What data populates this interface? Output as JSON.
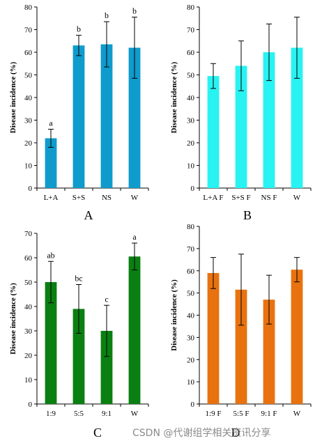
{
  "watermark": "CSDN @代谢组学相关资讯分享",
  "chart_data": [
    {
      "type": "bar",
      "panel_label": "A",
      "ylabel": "Disease incidence (%)",
      "ylim": [
        0,
        80
      ],
      "yticks": [
        0,
        10,
        20,
        30,
        40,
        50,
        60,
        70,
        80
      ],
      "color": "#0f9bcc",
      "categories": [
        "L+A",
        "S+S",
        "NS",
        "W"
      ],
      "values": [
        22,
        63,
        63.5,
        62
      ],
      "errors": [
        4,
        4.5,
        10,
        13.5
      ],
      "significance": [
        "a",
        "b",
        "b",
        "b"
      ]
    },
    {
      "type": "bar",
      "panel_label": "B",
      "ylabel": "Disease incidence (%)",
      "ylim": [
        0,
        80
      ],
      "yticks": [
        0,
        10,
        20,
        30,
        40,
        50,
        60,
        70,
        80
      ],
      "color": "#29f2f2",
      "categories": [
        "L+A F",
        "S+S F",
        "NS F",
        "W"
      ],
      "values": [
        49.5,
        54,
        60,
        62
      ],
      "errors": [
        5.5,
        11,
        12.5,
        13.5
      ],
      "significance": [
        "",
        "",
        "",
        ""
      ]
    },
    {
      "type": "bar",
      "panel_label": "C",
      "ylabel": "Disease incidence (%)",
      "ylim": [
        0,
        70
      ],
      "yticks": [
        0,
        10,
        20,
        30,
        40,
        50,
        60,
        70
      ],
      "color": "#0a7f12",
      "categories": [
        "1:9",
        "5:5",
        "9:1",
        "W"
      ],
      "values": [
        50,
        39,
        30,
        60.5
      ],
      "errors": [
        8.5,
        10,
        10.5,
        5.5
      ],
      "significance": [
        "ab",
        "bc",
        "c",
        "a"
      ]
    },
    {
      "type": "bar",
      "panel_label": "D",
      "ylabel": "Disease incidence (%)",
      "ylim": [
        0,
        80
      ],
      "yticks": [
        0,
        10,
        20,
        30,
        40,
        50,
        60,
        70,
        80
      ],
      "color": "#e8720f",
      "categories": [
        "1:9 F",
        "5:5 F",
        "9:1 F",
        "W"
      ],
      "values": [
        59,
        51.5,
        47,
        60.5
      ],
      "errors": [
        7,
        16,
        11,
        5.5
      ],
      "significance": [
        "",
        "",
        "",
        ""
      ]
    }
  ]
}
